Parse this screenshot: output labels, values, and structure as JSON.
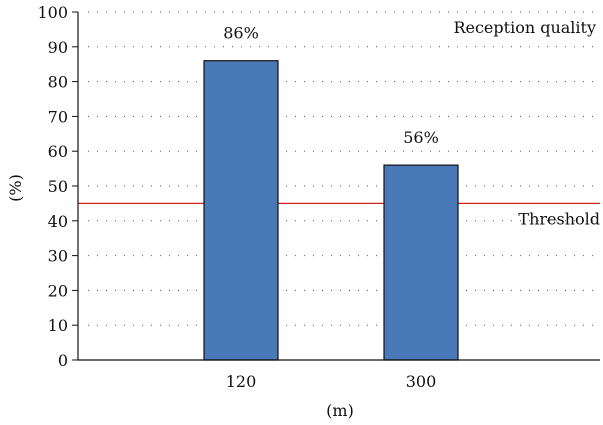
{
  "chart_data": {
    "type": "bar",
    "title": "",
    "xlabel": "(m)",
    "ylabel": "(%)",
    "categories": [
      "120",
      "300"
    ],
    "values": [
      86,
      56
    ],
    "value_labels": [
      "86%",
      "56%"
    ],
    "ylim": [
      0,
      100
    ],
    "yticks": [
      0,
      10,
      20,
      30,
      40,
      50,
      60,
      70,
      80,
      90,
      100
    ],
    "grid": "dotted-horizontal",
    "legend_label": "Reception quality",
    "legend_placement": "top-right",
    "threshold": {
      "value": 45,
      "label": "Threshold",
      "color": "#cc2222"
    },
    "bar_color": "#4a79b7",
    "bar_outline_color": "#111111"
  }
}
